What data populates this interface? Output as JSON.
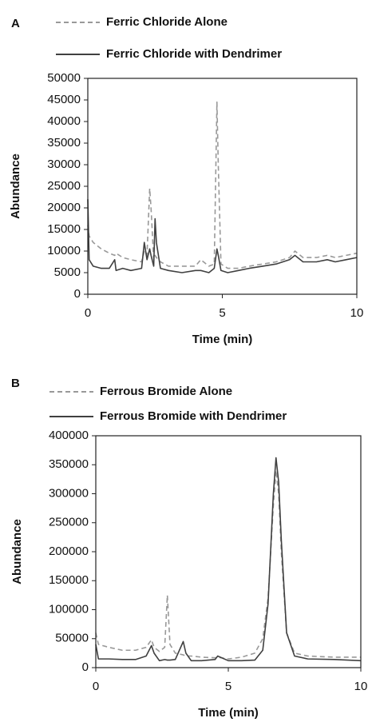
{
  "chart_data": [
    {
      "type": "line",
      "panel_label": "A",
      "xlabel": "Time (min)",
      "ylabel": "Abundance",
      "x": [
        0,
        0.05,
        0.2,
        0.5,
        0.8,
        1.0,
        1.05,
        1.3,
        1.6,
        2.0,
        2.1,
        2.2,
        2.3,
        2.35,
        2.45,
        2.5,
        2.55,
        2.7,
        3.0,
        3.5,
        4.0,
        4.2,
        4.5,
        4.7,
        4.8,
        4.85,
        4.95,
        5.2,
        5.6,
        6.0,
        6.5,
        7.0,
        7.5,
        7.7,
        8.0,
        8.5,
        8.9,
        9.2,
        9.6,
        10
      ],
      "series": [
        {
          "name": "Ferric Chloride Alone",
          "color": "#999999",
          "style": "dashed",
          "values": [
            16000,
            13500,
            12000,
            10500,
            9500,
            9000,
            9500,
            8500,
            8000,
            7500,
            10000,
            9000,
            24500,
            20000,
            8000,
            9000,
            8500,
            7500,
            6500,
            6500,
            6500,
            8000,
            6500,
            7000,
            44500,
            30000,
            7000,
            6000,
            6000,
            6500,
            7000,
            7500,
            8500,
            10000,
            8500,
            8500,
            9000,
            8500,
            9000,
            9500
          ]
        },
        {
          "name": "Ferric Chloride with Dendrimer",
          "color": "#404040",
          "style": "solid",
          "values": [
            22000,
            8000,
            6500,
            6000,
            6000,
            8000,
            5500,
            6000,
            5500,
            6000,
            12000,
            8000,
            10500,
            9000,
            6500,
            17500,
            12000,
            6000,
            5500,
            5000,
            5500,
            5500,
            5000,
            6000,
            10500,
            9000,
            5500,
            5000,
            5500,
            6000,
            6500,
            7000,
            8000,
            9000,
            7500,
            7500,
            8000,
            7500,
            8000,
            8500
          ]
        }
      ],
      "xlim": [
        0,
        10
      ],
      "xticks": [
        0,
        5,
        10
      ],
      "ylim": [
        0,
        50000
      ],
      "yticks": [
        0,
        5000,
        10000,
        15000,
        20000,
        25000,
        30000,
        35000,
        40000,
        45000,
        50000
      ]
    },
    {
      "type": "line",
      "panel_label": "B",
      "xlabel": "Time (min)",
      "ylabel": "Abundance",
      "x": [
        0,
        0.1,
        0.5,
        1.0,
        1.5,
        1.9,
        2.1,
        2.2,
        2.4,
        2.6,
        2.7,
        2.8,
        3.0,
        3.3,
        3.4,
        3.6,
        4.0,
        4.5,
        4.6,
        5.0,
        5.5,
        6.0,
        6.3,
        6.5,
        6.7,
        6.8,
        6.9,
        7.0,
        7.2,
        7.5,
        8.0,
        9.0,
        10
      ],
      "series": [
        {
          "name": "Ferrous Bromide Alone",
          "color": "#999999",
          "style": "dashed",
          "values": [
            60000,
            40000,
            35000,
            30000,
            30000,
            35000,
            48000,
            35000,
            28000,
            35000,
            125000,
            40000,
            25000,
            22000,
            20000,
            20000,
            18000,
            17000,
            18000,
            15000,
            18000,
            25000,
            50000,
            120000,
            280000,
            340000,
            300000,
            200000,
            60000,
            25000,
            20000,
            18000,
            18000
          ]
        },
        {
          "name": "Ferrous Bromide with Dendrimer",
          "color": "#404040",
          "style": "solid",
          "values": [
            40000,
            15000,
            15000,
            14000,
            14000,
            20000,
            38000,
            25000,
            12000,
            14000,
            13000,
            13000,
            14000,
            45000,
            25000,
            12000,
            12000,
            14000,
            20000,
            12000,
            12000,
            13000,
            30000,
            110000,
            300000,
            362000,
            320000,
            220000,
            60000,
            20000,
            15000,
            14000,
            12000
          ]
        }
      ],
      "xlim": [
        0,
        10
      ],
      "xticks": [
        0,
        5,
        10
      ],
      "ylim": [
        0,
        400000
      ],
      "yticks": [
        0,
        50000,
        100000,
        150000,
        200000,
        250000,
        300000,
        350000,
        400000
      ]
    }
  ]
}
